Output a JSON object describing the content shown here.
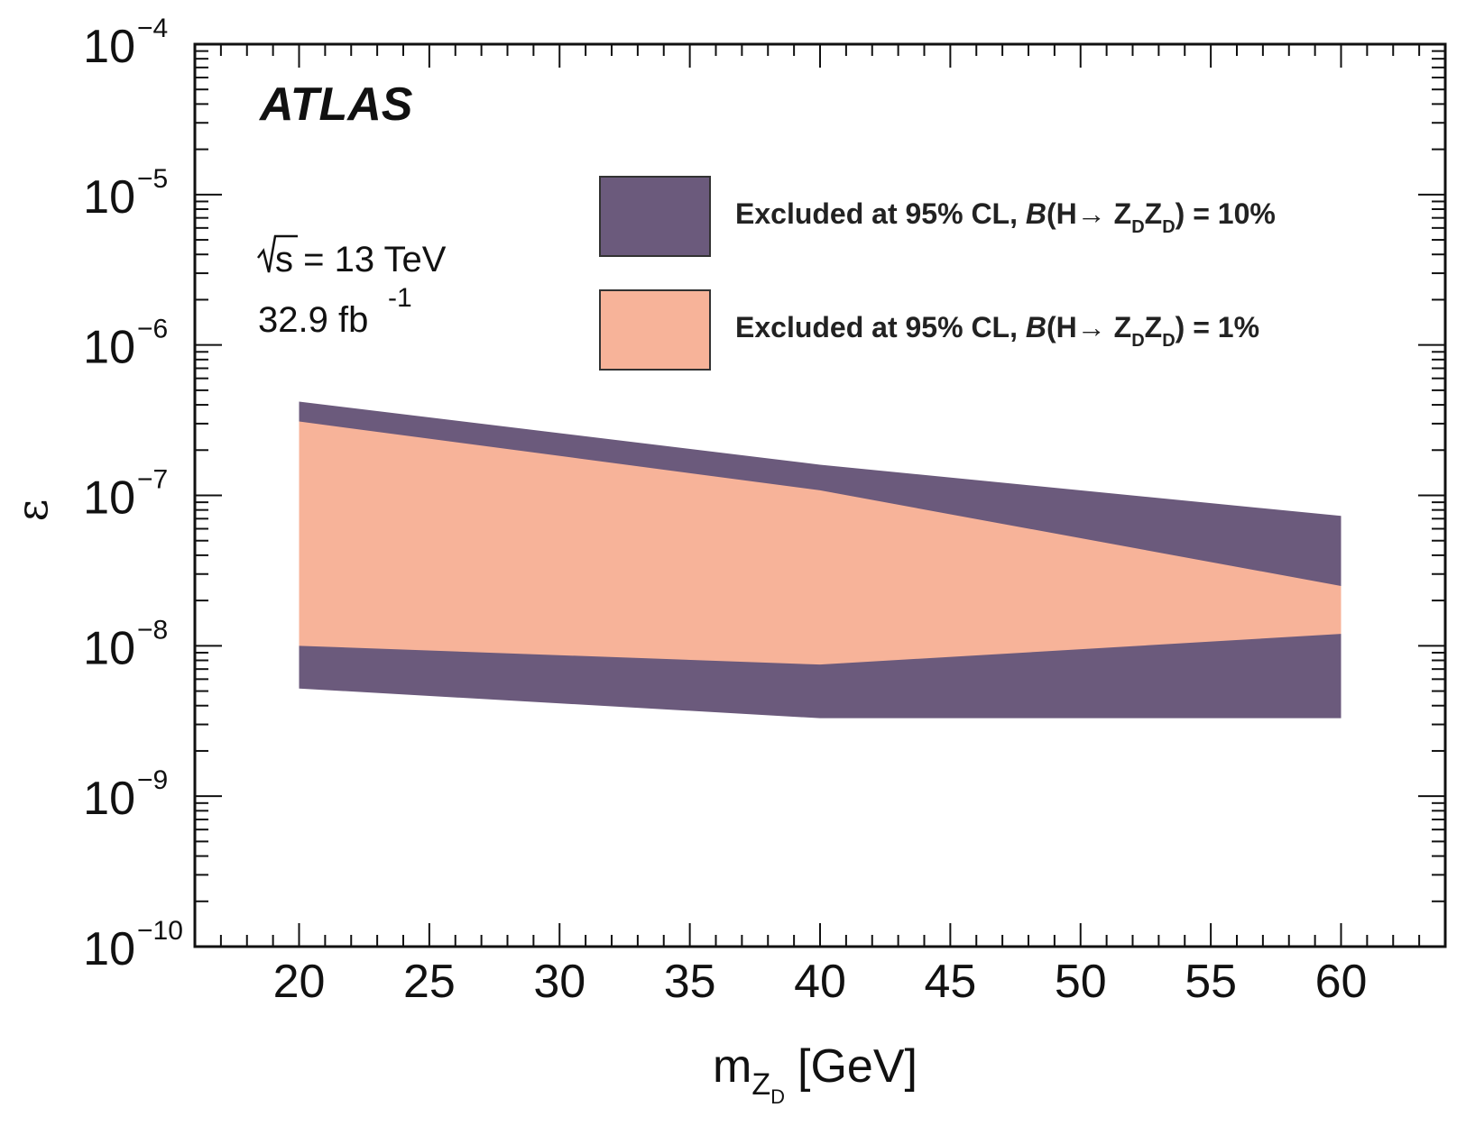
{
  "chart_data": {
    "type": "area",
    "experiment": "ATLAS",
    "energy_main": "s = 13 TeV",
    "lumi_main": "32.9 fb",
    "lumi_sup": "-1",
    "xlabel_main": "m",
    "xlabel_sub": "Z",
    "xlabel_subsub": "D",
    "xlabel_unit": "[GeV]",
    "ylabel": "ε",
    "xlim": [
      16,
      64
    ],
    "ylim_log10": [
      -10,
      -4
    ],
    "xticks": [
      20,
      25,
      30,
      35,
      40,
      45,
      50,
      55,
      60
    ],
    "yticks": [
      {
        "base": "10",
        "exp": "−4",
        "value": -4
      },
      {
        "base": "10",
        "exp": "−5",
        "value": -5
      },
      {
        "base": "10",
        "exp": "−6",
        "value": -6
      },
      {
        "base": "10",
        "exp": "−7",
        "value": -7
      },
      {
        "base": "10",
        "exp": "−8",
        "value": -8
      },
      {
        "base": "10",
        "exp": "−9",
        "value": -9
      },
      {
        "base": "10",
        "exp": "−10",
        "value": -10
      }
    ],
    "series": [
      {
        "name": "Excluded at 95% CL, B(H→ Z_D Z_D) = 10%",
        "color": "#6b5a7c",
        "x": [
          20,
          40,
          60
        ],
        "upper": [
          4.2e-07,
          1.6e-07,
          7.3e-08
        ],
        "lower": [
          5.2e-09,
          3.3e-09,
          3.3e-09
        ]
      },
      {
        "name": "Excluded at 95% CL, B(H→ Z_D Z_D) = 1%",
        "color": "#f7b399",
        "x": [
          20,
          40,
          60
        ],
        "upper": [
          3.1e-07,
          1.08e-07,
          2.5e-08
        ],
        "lower": [
          1e-08,
          7.5e-09,
          1.2e-08
        ]
      }
    ],
    "legend": [
      {
        "prefix": "Excluded at 95% CL,  ",
        "b": "B",
        "mid": "(H→ Z",
        "sub1": "D",
        "z2": "Z",
        "sub2": "D",
        "suffix": ") = 10%",
        "color": "#6b5a7c"
      },
      {
        "prefix": "Excluded at 95% CL,  ",
        "b": "B",
        "mid": "(H→ Z",
        "sub1": "D",
        "z2": "Z",
        "sub2": "D",
        "suffix": ") = 1%",
        "color": "#f7b399"
      }
    ]
  }
}
